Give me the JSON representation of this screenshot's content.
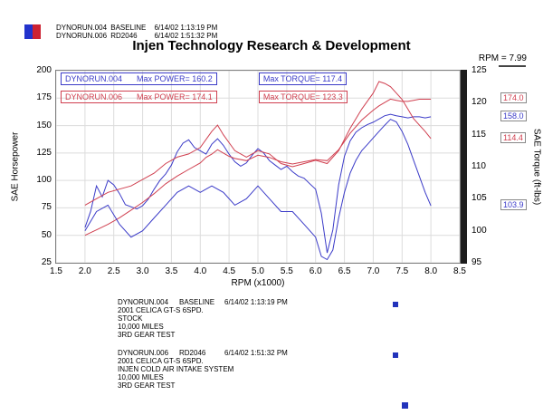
{
  "header": {
    "legend": [
      {
        "name": "DYNORUN.004",
        "label": "BASELINE",
        "timestamp": "6/14/02 1:13:19 PM",
        "color": "#2233cc"
      },
      {
        "name": "DYNORUN.006",
        "label": "RD2046",
        "timestamp": "6/14/02 1:51:32 PM",
        "color": "#cc2233"
      }
    ],
    "rpm_readout": "RPM = 7.99"
  },
  "annotations": {
    "run1": {
      "name": "DYNORUN.004",
      "power": "Max POWER= 160.2",
      "torque": "Max TORQUE= 117.4",
      "color": "#3b3bc8"
    },
    "run2": {
      "name": "DYNORUN.006",
      "power": "Max POWER= 174.1",
      "torque": "Max TORQUE= 123.3",
      "color": "#d04050"
    }
  },
  "chart_data": {
    "type": "line",
    "title": "Injen Technology Research & Development",
    "xlabel": "RPM (x1000)",
    "ylabel_left": "SAE Horsepower",
    "ylabel_right": "SAE Torque (ft-lbs)",
    "xlim": [
      1.5,
      8.5
    ],
    "ylim_left": [
      25,
      200
    ],
    "ylim_right": [
      95,
      125
    ],
    "grid": true,
    "legend_position": "top-left",
    "xticks": [
      "1.5",
      "2.0",
      "2.5",
      "3.0",
      "3.5",
      "4.0",
      "4.5",
      "5.0",
      "5.5",
      "6.0",
      "6.5",
      "7.0",
      "7.5",
      "8.0",
      "8.5"
    ],
    "yticks_left": [
      "200",
      "175",
      "150",
      "125",
      "100",
      "75",
      "50",
      "25"
    ],
    "yticks_right": [
      "125",
      "120",
      "115",
      "110",
      "105",
      "100",
      "95"
    ],
    "series": [
      {
        "name": "DYNORUN.004 Horsepower",
        "axis": "left",
        "color": "#3b3bc8",
        "max": 160.2,
        "x": [
          2.0,
          2.1,
          2.2,
          2.3,
          2.4,
          2.5,
          2.6,
          2.7,
          2.8,
          2.9,
          3.0,
          3.1,
          3.2,
          3.3,
          3.4,
          3.5,
          3.6,
          3.7,
          3.8,
          3.9,
          4.0,
          4.1,
          4.2,
          4.3,
          4.4,
          4.5,
          4.6,
          4.7,
          4.8,
          4.9,
          5.0,
          5.1,
          5.2,
          5.3,
          5.4,
          5.5,
          5.6,
          5.7,
          5.8,
          5.9,
          6.0,
          6.1,
          6.2,
          6.3,
          6.4,
          6.5,
          6.6,
          6.7,
          6.8,
          6.9,
          7.0,
          7.1,
          7.2,
          7.3,
          7.4,
          7.5,
          7.6,
          7.7,
          7.8,
          7.9,
          8.0
        ],
        "values": [
          57,
          72,
          95,
          85,
          100,
          96,
          88,
          78,
          76,
          74,
          77,
          83,
          92,
          100,
          106,
          114,
          126,
          134,
          137,
          130,
          127,
          124,
          133,
          138,
          132,
          124,
          117,
          113,
          116,
          123,
          129,
          125,
          118,
          114,
          110,
          113,
          108,
          104,
          102,
          97,
          92,
          70,
          34,
          55,
          96,
          122,
          136,
          144,
          148,
          151,
          153,
          156,
          159,
          160.2,
          159,
          158,
          157,
          158,
          158,
          157,
          158
        ]
      },
      {
        "name": "DYNORUN.006 Horsepower",
        "axis": "left",
        "color": "#d04050",
        "max": 174.1,
        "x": [
          2.0,
          2.2,
          2.4,
          2.6,
          2.8,
          3.0,
          3.2,
          3.4,
          3.6,
          3.8,
          4.0,
          4.1,
          4.2,
          4.3,
          4.4,
          4.5,
          4.6,
          4.8,
          5.0,
          5.2,
          5.4,
          5.6,
          5.8,
          6.0,
          6.2,
          6.4,
          6.6,
          6.8,
          7.0,
          7.1,
          7.2,
          7.3,
          7.4,
          7.5,
          7.6,
          7.7,
          7.8,
          7.9,
          8.0
        ],
        "values": [
          50,
          55,
          60,
          66,
          73,
          80,
          88,
          97,
          104,
          110,
          116,
          121,
          124,
          128,
          125,
          122,
          120,
          118,
          123,
          121,
          117,
          115,
          117,
          119,
          118,
          128,
          143,
          155,
          164,
          168,
          171,
          174.1,
          173,
          172,
          172,
          173,
          174,
          174,
          174
        ]
      },
      {
        "name": "DYNORUN.004 Torque",
        "axis": "right",
        "color": "#3b3bc8",
        "max": 117.4,
        "x": [
          2.0,
          2.2,
          2.4,
          2.6,
          2.8,
          3.0,
          3.2,
          3.4,
          3.6,
          3.8,
          4.0,
          4.2,
          4.4,
          4.6,
          4.8,
          5.0,
          5.2,
          5.4,
          5.6,
          5.8,
          6.0,
          6.1,
          6.2,
          6.3,
          6.4,
          6.5,
          6.6,
          6.7,
          6.8,
          6.9,
          7.0,
          7.1,
          7.2,
          7.3,
          7.4,
          7.5,
          7.6,
          7.7,
          7.8,
          7.9,
          8.0
        ],
        "values": [
          100,
          103,
          104,
          101,
          99,
          100,
          102,
          104,
          106,
          107,
          106,
          107,
          106,
          104,
          105,
          107,
          105,
          103,
          103,
          101,
          99,
          96,
          95.5,
          97,
          102,
          106,
          109,
          111,
          112.5,
          113.5,
          114.5,
          115.5,
          116.5,
          117.4,
          117,
          115.5,
          113.5,
          111,
          108.5,
          106,
          103.9
        ]
      },
      {
        "name": "DYNORUN.006 Torque",
        "axis": "right",
        "color": "#d04050",
        "max": 123.3,
        "x": [
          2.0,
          2.2,
          2.4,
          2.6,
          2.8,
          3.0,
          3.2,
          3.4,
          3.6,
          3.8,
          4.0,
          4.2,
          4.3,
          4.4,
          4.6,
          4.8,
          5.0,
          5.2,
          5.4,
          5.6,
          5.8,
          6.0,
          6.2,
          6.4,
          6.6,
          6.8,
          7.0,
          7.1,
          7.2,
          7.3,
          7.4,
          7.5,
          7.6,
          7.7,
          7.8,
          7.9,
          8.0
        ],
        "values": [
          104,
          105,
          106,
          106.5,
          107,
          108,
          109,
          110.5,
          111.5,
          112,
          113,
          115.5,
          116.5,
          115,
          112.5,
          111.5,
          112.5,
          112,
          110.5,
          110,
          110.5,
          111,
          110.5,
          112.5,
          116,
          119,
          121.5,
          123.3,
          123,
          122.5,
          121.5,
          120.5,
          119,
          117.5,
          116.5,
          115.5,
          114.4
        ]
      }
    ],
    "end_labels": [
      {
        "text": "174.0",
        "axis": "left",
        "value": 174.0,
        "color": "#d04050"
      },
      {
        "text": "158.0",
        "axis": "left",
        "value": 158.0,
        "color": "#3b3bc8"
      },
      {
        "text": "114.4",
        "axis": "right",
        "value": 114.4,
        "color": "#d04050"
      },
      {
        "text": "103.9",
        "axis": "right",
        "value": 103.9,
        "color": "#3b3bc8"
      }
    ]
  },
  "footer": {
    "blocks": [
      {
        "name": "DYNORUN.004",
        "label": "BASELINE",
        "timestamp": "6/14/02  1:13:19 PM",
        "lines": [
          "2001 CELICA GT-S 6SPD.",
          "STOCK",
          "10,000 MILES",
          "3RD GEAR TEST"
        ]
      },
      {
        "name": "DYNORUN.006",
        "label": "RD2046",
        "timestamp": "6/14/02  1:51:32 PM",
        "lines": [
          "2001 CELICA GT-S 6SPD.",
          "INJEN COLD AIR INTAKE SYSTEM",
          "10,000 MILES",
          "3RD GEAR TEST"
        ]
      }
    ]
  },
  "colors": {
    "run1": "#3b3bc8",
    "run2": "#d04050",
    "axis_bar": "#1d1d1d"
  }
}
